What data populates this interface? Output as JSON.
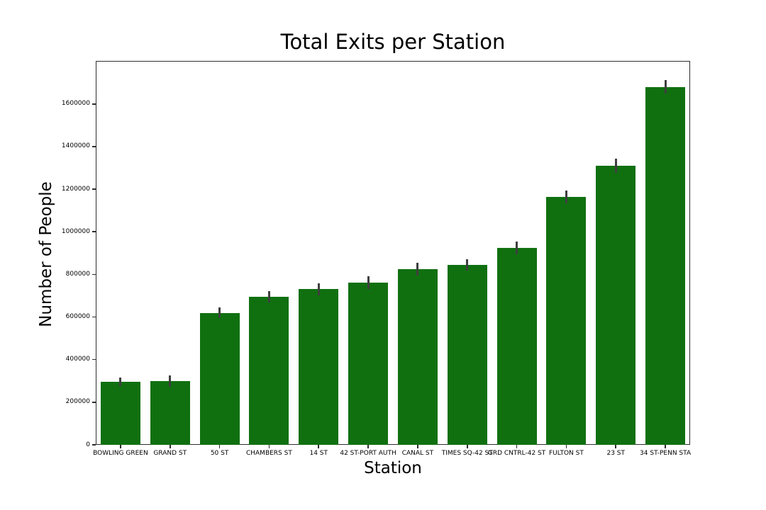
{
  "chart_data": {
    "type": "bar",
    "title": "Total Exits per Station",
    "xlabel": "Station",
    "ylabel": "Number of People",
    "categories": [
      "BOWLING GREEN",
      "GRAND ST",
      "50 ST",
      "CHAMBERS ST",
      "14 ST",
      "42 ST-PORT AUTH",
      "CANAL ST",
      "TIMES SQ-42 ST",
      "GRD CNTRL-42 ST",
      "FULTON ST",
      "23 ST",
      "34 ST-PENN STA"
    ],
    "values": [
      295000,
      300000,
      620000,
      695000,
      730000,
      760000,
      825000,
      845000,
      925000,
      1165000,
      1310000,
      1680000
    ],
    "errors": [
      20000,
      26000,
      26000,
      28000,
      29000,
      30000,
      29000,
      27000,
      30000,
      30000,
      33000,
      32000
    ],
    "yticks": [
      0,
      200000,
      400000,
      600000,
      800000,
      1000000,
      1200000,
      1400000,
      1600000
    ],
    "ylim": [
      0,
      1802000
    ],
    "grid": false,
    "legend": null,
    "bar_color": "#107010",
    "error_color": "#3f3f3f",
    "spine_color": "#2e2e2e"
  }
}
